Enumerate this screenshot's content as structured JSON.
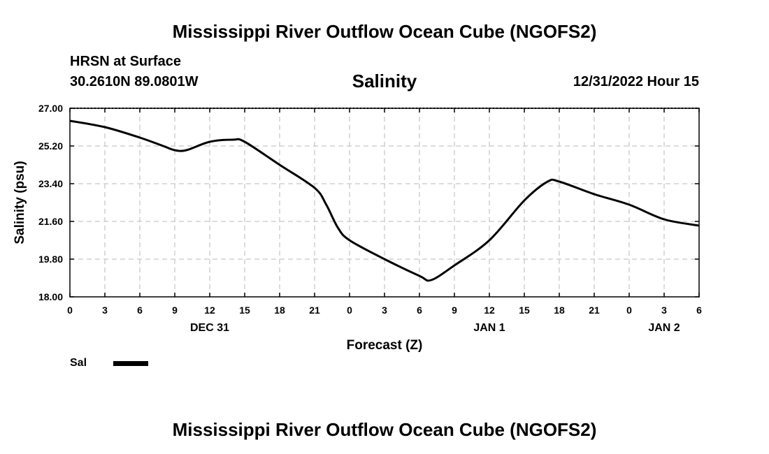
{
  "header": {
    "title": "Mississippi River Outflow Ocean Cube (NGOFS2)",
    "station": "HRSN at Surface",
    "coords": "30.2610N  89.0801W",
    "variable": "Salinity",
    "datetime": "12/31/2022 Hour 15"
  },
  "footer": {
    "title": "Mississippi River Outflow Ocean Cube (NGOFS2)"
  },
  "legend": {
    "label": "Sal",
    "color": "#000000"
  },
  "chart_data": {
    "type": "line",
    "title": "Salinity",
    "xlabel": "Forecast (Z)",
    "ylabel": "Salinity (psu)",
    "ylim": [
      18.0,
      27.0
    ],
    "xlim": [
      0,
      54
    ],
    "grid": true,
    "y_ticks": [
      "18.00",
      "19.80",
      "21.60",
      "23.40",
      "25.20",
      "27.00"
    ],
    "x_tick_labels": [
      "0",
      "3",
      "6",
      "9",
      "12",
      "15",
      "18",
      "21",
      "0",
      "3",
      "6",
      "9",
      "12",
      "15",
      "18",
      "21",
      "0",
      "3",
      "6"
    ],
    "date_labels": [
      {
        "label": "DEC 31",
        "hour": 12
      },
      {
        "label": "JAN 1",
        "hour": 36
      },
      {
        "label": "JAN 2",
        "hour": 51
      }
    ],
    "series": [
      {
        "name": "Sal",
        "x": [
          0,
          3,
          6,
          8,
          9,
          10,
          12,
          14,
          15,
          18,
          21,
          22,
          23,
          24,
          27,
          30,
          31,
          33,
          36,
          39,
          41,
          42,
          45,
          48,
          51,
          54
        ],
        "values": [
          26.4,
          26.1,
          25.6,
          25.2,
          25.0,
          25.0,
          25.4,
          25.5,
          25.4,
          24.3,
          23.2,
          22.4,
          21.3,
          20.7,
          19.8,
          19.0,
          18.8,
          19.5,
          20.7,
          22.6,
          23.5,
          23.5,
          22.9,
          22.4,
          21.7,
          21.4
        ]
      }
    ]
  }
}
